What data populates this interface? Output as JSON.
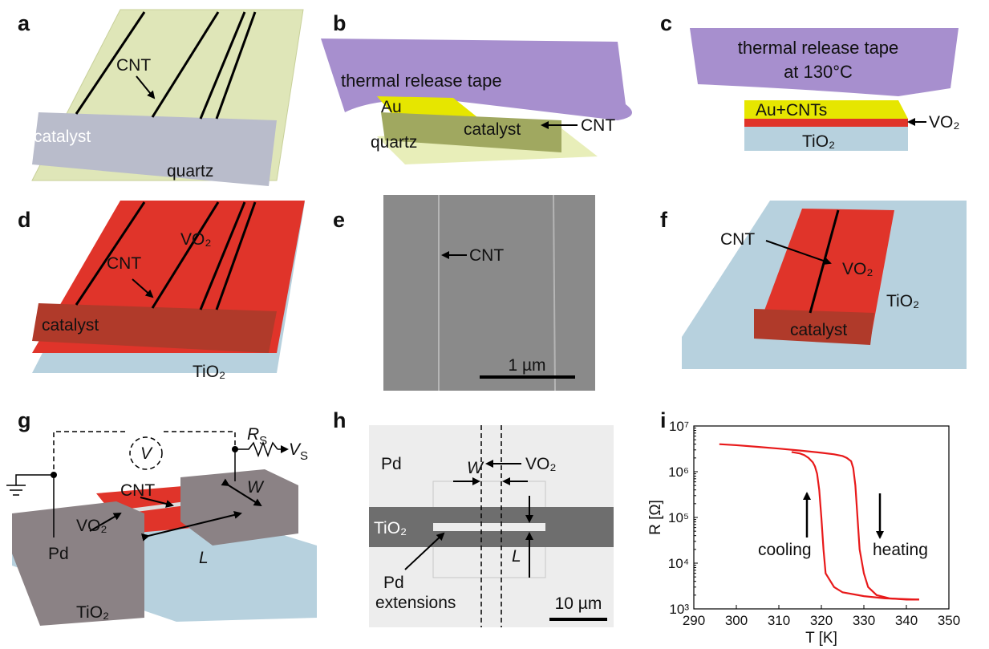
{
  "panels": {
    "a": {
      "letter": "a",
      "cnt": "CNT",
      "catalyst": "catalyst",
      "quartz": "quartz"
    },
    "b": {
      "letter": "b",
      "tape": "thermal release tape",
      "au": "Au",
      "catalyst": "catalyst",
      "cnt": "CNT",
      "quartz": "quartz"
    },
    "c": {
      "letter": "c",
      "tape": "thermal release tape",
      "temp": "at 130°C",
      "au": "Au+CNTs",
      "vo2": "VO₂",
      "tio2": "TiO₂"
    },
    "d": {
      "letter": "d",
      "cnt": "CNT",
      "vo2": "VO₂",
      "catalyst": "catalyst",
      "tio2": "TiO₂"
    },
    "e": {
      "letter": "e",
      "cnt": "CNT",
      "scale": "1 µm"
    },
    "f": {
      "letter": "f",
      "cnt": "CNT",
      "vo2": "VO₂",
      "tio2": "TiO₂",
      "catalyst": "catalyst"
    },
    "g": {
      "letter": "g",
      "v": "V",
      "rs": {
        "symbol": "R",
        "subscript": "S"
      },
      "vs": {
        "symbol": "V",
        "subscript": "S"
      },
      "vo2": "VO₂",
      "cnt": "CNT",
      "w": "W",
      "pd": "Pd",
      "l": "L",
      "tio2": "TiO₂"
    },
    "h": {
      "letter": "h",
      "pd": "Pd",
      "vo2": "VO₂",
      "w": "W",
      "tio2": "TiO₂",
      "l": "L",
      "pd2": "Pd",
      "extensions": "extensions",
      "scale": "10 µm"
    },
    "i": {
      "letter": "i",
      "cooling": "cooling",
      "heating": "heating"
    }
  },
  "chart_data": {
    "type": "line",
    "xlabel": "T [K]",
    "ylabel": "R [Ω]",
    "log_y": true,
    "xlim": [
      290,
      350
    ],
    "xticks": [
      290,
      300,
      310,
      320,
      330,
      340,
      350
    ],
    "ylim": [
      1000,
      10000000
    ],
    "yticks": [
      {
        "value": 1000,
        "label": "10³"
      },
      {
        "value": 10000,
        "label": "10⁴"
      },
      {
        "value": 100000,
        "label": "10⁵"
      },
      {
        "value": 1000000,
        "label": "10⁶"
      },
      {
        "value": 10000000,
        "label": "10⁷"
      }
    ],
    "series": [
      {
        "name": "heating",
        "color": "#e8191a",
        "x": [
          296,
          300,
          305,
          310,
          315,
          320,
          323,
          325,
          326,
          327,
          327.5,
          328,
          328.5,
          329,
          330,
          331,
          333,
          336,
          340,
          343
        ],
        "values": [
          4000000,
          3800000,
          3500000,
          3200000,
          2900000,
          2600000,
          2400000,
          2200000,
          2000000,
          1700000,
          1200000,
          500000,
          100000,
          20000,
          6000,
          3000,
          2000,
          1700,
          1600,
          1600
        ]
      },
      {
        "name": "cooling",
        "color": "#e8191a",
        "x": [
          343,
          335,
          330,
          325,
          323,
          321,
          320.5,
          320,
          319.5,
          319,
          318.5,
          318,
          317,
          316,
          315,
          313
        ],
        "values": [
          1600,
          1700,
          1900,
          2300,
          3000,
          6000,
          20000,
          100000,
          400000,
          900000,
          1300000,
          1600000,
          2000000,
          2300000,
          2500000,
          2700000
        ]
      }
    ]
  }
}
